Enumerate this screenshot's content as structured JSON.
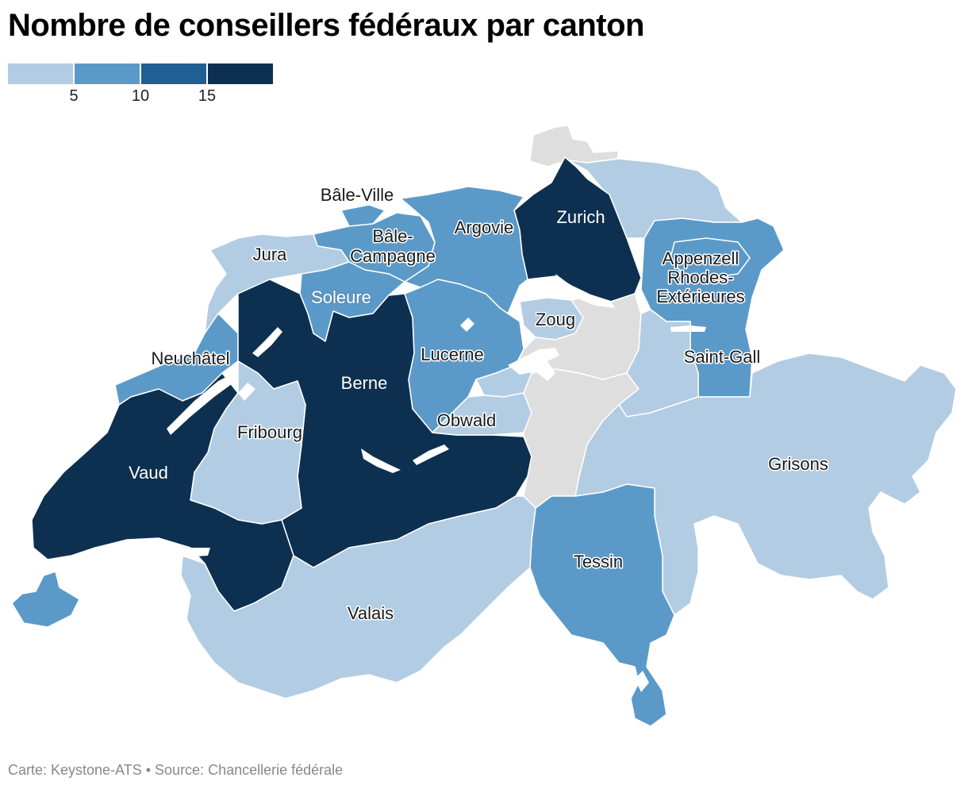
{
  "title": "Nombre de conseillers fédéraux par canton",
  "legend": {
    "colors": [
      "#b2cce3",
      "#5b9ac8",
      "#1f5f93",
      "#0d3050"
    ],
    "ticks": [
      "5",
      "10",
      "15"
    ]
  },
  "colors": {
    "none": "#dedede",
    "low": "#b2cce3",
    "mid": "#5b9ac8",
    "high": "#1f5f93",
    "top": "#0d3050"
  },
  "cantons": [
    {
      "name": "Bâle-Ville",
      "label": "Bâle-Ville",
      "class": "mid"
    },
    {
      "name": "Bâle-Campagne",
      "label_lines": [
        "Bâle-",
        "Campagne"
      ],
      "class": "mid"
    },
    {
      "name": "Argovie",
      "label": "Argovie",
      "class": "mid"
    },
    {
      "name": "Zurich",
      "label": "Zurich",
      "class": "top"
    },
    {
      "name": "Jura",
      "label": "Jura",
      "class": "low"
    },
    {
      "name": "Soleure",
      "label": "Soleure",
      "class": "mid"
    },
    {
      "name": "Appenzell Rhodes-Extérieures",
      "label_lines": [
        "Appenzell",
        "Rhodes-",
        "Extérieures"
      ],
      "class": "mid"
    },
    {
      "name": "Zoug",
      "label": "Zoug",
      "class": "low"
    },
    {
      "name": "Neuchâtel",
      "label": "Neuchâtel",
      "class": "mid"
    },
    {
      "name": "Lucerne",
      "label": "Lucerne",
      "class": "mid"
    },
    {
      "name": "Saint-Gall",
      "label": "Saint-Gall",
      "class": "mid"
    },
    {
      "name": "Berne",
      "label": "Berne",
      "class": "top"
    },
    {
      "name": "Obwald",
      "label": "Obwald",
      "class": "low"
    },
    {
      "name": "Fribourg",
      "label": "Fribourg",
      "class": "low"
    },
    {
      "name": "Grisons",
      "label": "Grisons",
      "class": "low"
    },
    {
      "name": "Vaud",
      "label": "Vaud",
      "class": "top"
    },
    {
      "name": "Tessin",
      "label": "Tessin",
      "class": "mid"
    },
    {
      "name": "Valais",
      "label": "Valais",
      "class": "low"
    },
    {
      "name": "Genève",
      "label": "",
      "class": "mid"
    },
    {
      "name": "Schaffhouse",
      "label": "",
      "class": "none"
    },
    {
      "name": "Thurgovie",
      "label": "",
      "class": "low"
    },
    {
      "name": "Schwyz",
      "label": "",
      "class": "none"
    },
    {
      "name": "Uri",
      "label": "",
      "class": "none"
    },
    {
      "name": "Glaris",
      "label": "",
      "class": "low"
    },
    {
      "name": "Nidwald",
      "label": "",
      "class": "low"
    }
  ],
  "footer": "Carte: Keystone-ATS • Source: Chancellerie fédérale"
}
